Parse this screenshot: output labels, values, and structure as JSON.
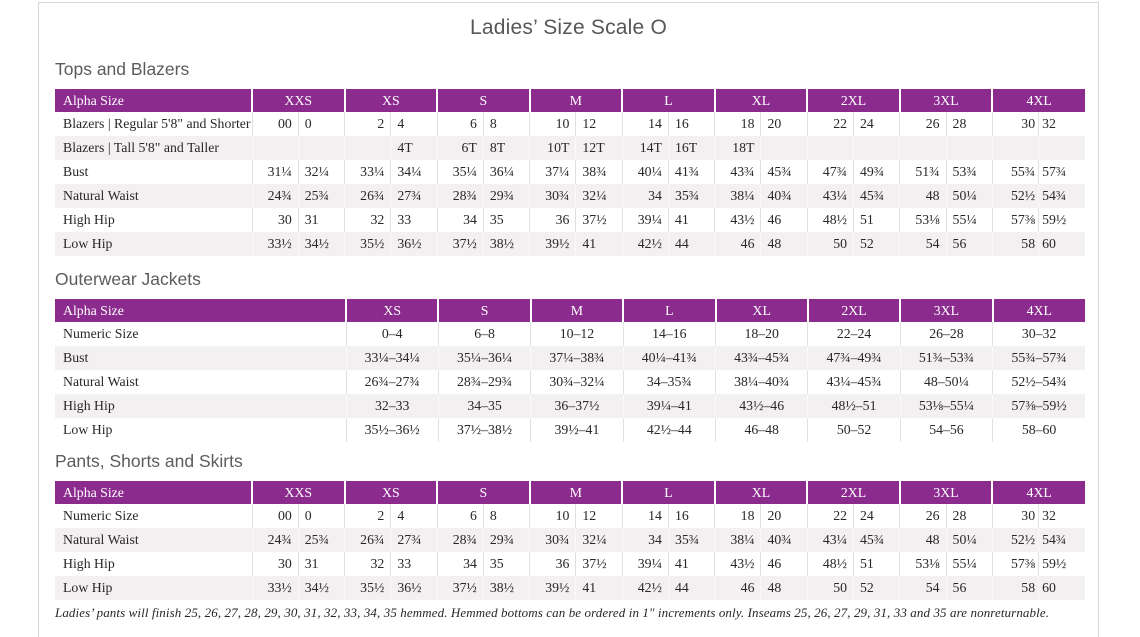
{
  "page": {
    "title": "Ladies’ Size Scale O",
    "footnote": "Ladies’ pants will finish 25, 26, 27, 28, 29, 30, 31, 32, 33, 34, 35 hemmed. Hemmed bottoms can be ordered in 1\" increments only. Inseams 25, 26, 27, 29, 31, 33 and 35 are nonreturnable."
  },
  "colors": {
    "header_purple": "#8c2b8e",
    "row_stripe": "#f2f0f1",
    "heading_gray": "#5b5c5e",
    "page_border": "#d8d4d6"
  },
  "tables": [
    {
      "heading": "Tops and Blazers",
      "label_header": "Alpha Size",
      "sizes": [
        "XXS",
        "XS",
        "S",
        "M",
        "L",
        "XL",
        "2XL",
        "3XL",
        "4XL"
      ],
      "rows": [
        {
          "label": "Blazers | Regular 5'8\" and Shorter",
          "values": [
            [
              "00",
              "0"
            ],
            [
              "2",
              "4"
            ],
            [
              "6",
              "8"
            ],
            [
              "10",
              "12"
            ],
            [
              "14",
              "16"
            ],
            [
              "18",
              "20"
            ],
            [
              "22",
              "24"
            ],
            [
              "26",
              "28"
            ],
            [
              "30",
              "32"
            ]
          ]
        },
        {
          "label": "Blazers | Tall 5'8\" and Taller",
          "values": [
            [
              "",
              ""
            ],
            [
              "",
              "4T"
            ],
            [
              "6T",
              "8T"
            ],
            [
              "10T",
              "12T"
            ],
            [
              "14T",
              "16T"
            ],
            [
              "18T",
              ""
            ],
            [
              "",
              ""
            ],
            [
              "",
              ""
            ],
            [
              "",
              ""
            ]
          ]
        },
        {
          "label": "Bust",
          "values": [
            [
              "31¼",
              "32¼"
            ],
            [
              "33¼",
              "34¼"
            ],
            [
              "35¼",
              "36¼"
            ],
            [
              "37¼",
              "38¾"
            ],
            [
              "40¼",
              "41¾"
            ],
            [
              "43¾",
              "45¾"
            ],
            [
              "47¾",
              "49¾"
            ],
            [
              "51¾",
              "53¾"
            ],
            [
              "55¾",
              "57¾"
            ]
          ]
        },
        {
          "label": "Natural Waist",
          "values": [
            [
              "24¾",
              "25¾"
            ],
            [
              "26¾",
              "27¾"
            ],
            [
              "28¾",
              "29¾"
            ],
            [
              "30¾",
              "32¼"
            ],
            [
              "34",
              "35¾"
            ],
            [
              "38¼",
              "40¾"
            ],
            [
              "43¼",
              "45¾"
            ],
            [
              "48",
              "50¼"
            ],
            [
              "52½",
              "54¾"
            ]
          ]
        },
        {
          "label": "High Hip",
          "values": [
            [
              "30",
              "31"
            ],
            [
              "32",
              "33"
            ],
            [
              "34",
              "35"
            ],
            [
              "36",
              "37½"
            ],
            [
              "39¼",
              "41"
            ],
            [
              "43½",
              "46"
            ],
            [
              "48½",
              "51"
            ],
            [
              "53⅛",
              "55¼"
            ],
            [
              "57⅜",
              "59½"
            ]
          ]
        },
        {
          "label": "Low Hip",
          "values": [
            [
              "33½",
              "34½"
            ],
            [
              "35½",
              "36½"
            ],
            [
              "37½",
              "38½"
            ],
            [
              "39½",
              "41"
            ],
            [
              "42½",
              "44"
            ],
            [
              "46",
              "48"
            ],
            [
              "50",
              "52"
            ],
            [
              "54",
              "56"
            ],
            [
              "58",
              "60"
            ]
          ]
        }
      ]
    },
    {
      "heading": "Outerwear Jackets",
      "label_header": "Alpha Size",
      "sizes": [
        "XS",
        "S",
        "M",
        "L",
        "XL",
        "2XL",
        "3XL",
        "4XL"
      ],
      "rows": [
        {
          "label": "Numeric Size",
          "values": [
            "0–4",
            "6–8",
            "10–12",
            "14–16",
            "18–20",
            "22–24",
            "26–28",
            "30–32"
          ]
        },
        {
          "label": "Bust",
          "values": [
            "33¼–34¼",
            "35¼–36¼",
            "37¼–38¾",
            "40¼–41¾",
            "43¾–45¾",
            "47¾–49¾",
            "51¾–53¾",
            "55¾–57¾"
          ]
        },
        {
          "label": "Natural Waist",
          "values": [
            "26¾–27¾",
            "28¾–29¾",
            "30¾–32¼",
            "34–35¾",
            "38¼–40¾",
            "43¼–45¾",
            "48–50¼",
            "52½–54¾"
          ]
        },
        {
          "label": "High Hip",
          "values": [
            "32–33",
            "34–35",
            "36–37½",
            "39¼–41",
            "43½–46",
            "48½–51",
            "53⅛–55¼",
            "57⅜–59½"
          ]
        },
        {
          "label": "Low Hip",
          "values": [
            "35½–36½",
            "37½–38½",
            "39½–41",
            "42½–44",
            "46–48",
            "50–52",
            "54–56",
            "58–60"
          ]
        }
      ]
    },
    {
      "heading": "Pants, Shorts and Skirts",
      "label_header": "Alpha Size",
      "sizes": [
        "XXS",
        "XS",
        "S",
        "M",
        "L",
        "XL",
        "2XL",
        "3XL",
        "4XL"
      ],
      "rows": [
        {
          "label": "Numeric Size",
          "values": [
            [
              "00",
              "0"
            ],
            [
              "2",
              "4"
            ],
            [
              "6",
              "8"
            ],
            [
              "10",
              "12"
            ],
            [
              "14",
              "16"
            ],
            [
              "18",
              "20"
            ],
            [
              "22",
              "24"
            ],
            [
              "26",
              "28"
            ],
            [
              "30",
              "32"
            ]
          ]
        },
        {
          "label": "Natural Waist",
          "values": [
            [
              "24¾",
              "25¾"
            ],
            [
              "26¾",
              "27¾"
            ],
            [
              "28¾",
              "29¾"
            ],
            [
              "30¾",
              "32¼"
            ],
            [
              "34",
              "35¾"
            ],
            [
              "38¼",
              "40¾"
            ],
            [
              "43¼",
              "45¾"
            ],
            [
              "48",
              "50¼"
            ],
            [
              "52½",
              "54¾"
            ]
          ]
        },
        {
          "label": "High Hip",
          "values": [
            [
              "30",
              "31"
            ],
            [
              "32",
              "33"
            ],
            [
              "34",
              "35"
            ],
            [
              "36",
              "37½"
            ],
            [
              "39¼",
              "41"
            ],
            [
              "43½",
              "46"
            ],
            [
              "48½",
              "51"
            ],
            [
              "53⅛",
              "55¼"
            ],
            [
              "57⅜",
              "59½"
            ]
          ]
        },
        {
          "label": "Low Hip",
          "values": [
            [
              "33½",
              "34½"
            ],
            [
              "35½",
              "36½"
            ],
            [
              "37½",
              "38½"
            ],
            [
              "39½",
              "41"
            ],
            [
              "42½",
              "44"
            ],
            [
              "46",
              "48"
            ],
            [
              "50",
              "52"
            ],
            [
              "54",
              "56"
            ],
            [
              "58",
              "60"
            ]
          ]
        }
      ]
    }
  ]
}
